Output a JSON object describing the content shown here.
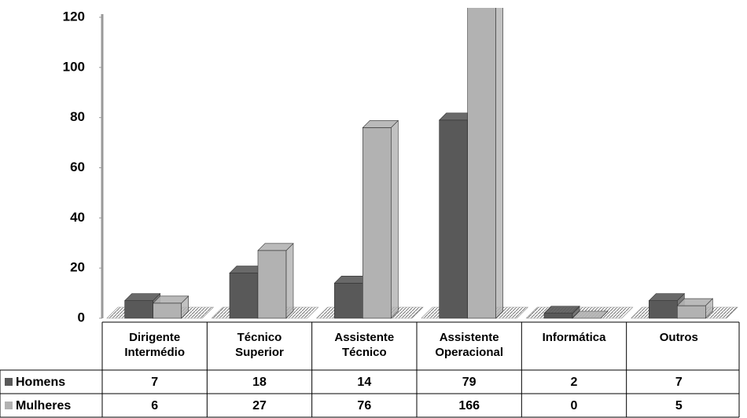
{
  "chart_data": {
    "type": "bar3d",
    "categories": [
      "Dirigente Intermédio",
      "Técnico Superior",
      "Assistente Técnico",
      "Assistente Operacional",
      "Informática",
      "Outros"
    ],
    "series": [
      {
        "name": "Homens",
        "color": "#595959",
        "values": [
          7,
          18,
          14,
          79,
          2,
          7
        ]
      },
      {
        "name": "Mulheres",
        "color": "#b2b2b2",
        "values": [
          6,
          27,
          76,
          166,
          0,
          5
        ]
      }
    ],
    "ylim": [
      0,
      120
    ],
    "yticks": [
      0,
      20,
      40,
      60,
      80,
      100,
      120
    ]
  }
}
